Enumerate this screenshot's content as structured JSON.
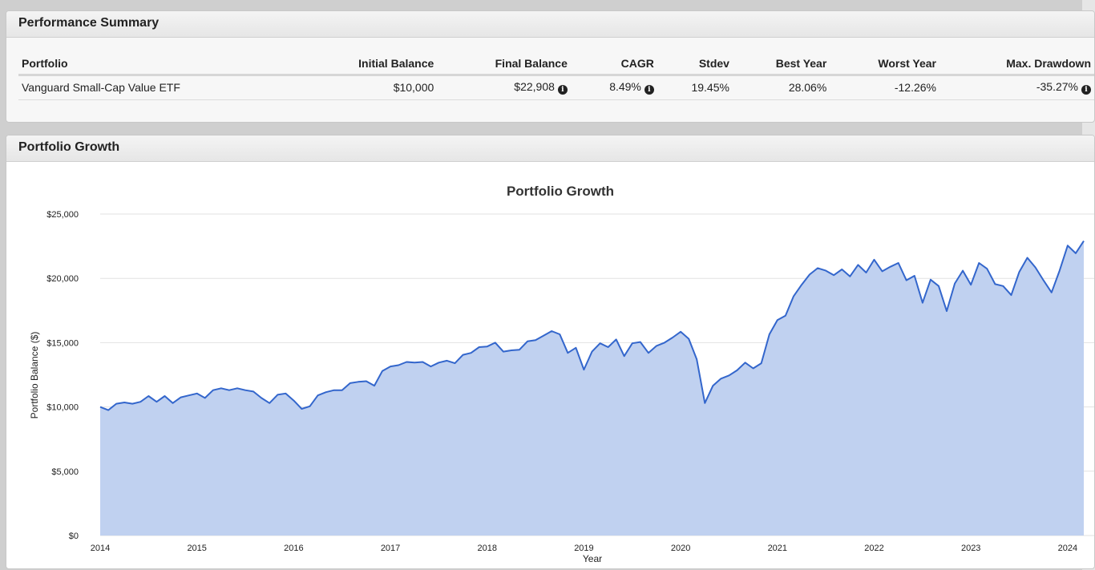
{
  "performance_summary": {
    "title": "Performance Summary",
    "columns": [
      "Portfolio",
      "Initial Balance",
      "Final Balance",
      "CAGR",
      "Stdev",
      "Best Year",
      "Worst Year",
      "Max. Drawdown"
    ],
    "row": {
      "portfolio": "Vanguard Small-Cap Value ETF",
      "initial_balance": "$10,000",
      "final_balance": "$22,908",
      "cagr": "8.49%",
      "stdev": "19.45%",
      "best_year": "28.06%",
      "worst_year": "-12.26%",
      "max_drawdown": "-35.27%"
    },
    "info_icon": "info-circle-icon"
  },
  "portfolio_growth": {
    "panel_title": "Portfolio Growth"
  },
  "chart_data": {
    "type": "area",
    "title": "Portfolio Growth",
    "xlabel": "Year",
    "ylabel": "Portfolio Balance ($)",
    "ylim": [
      0,
      25000
    ],
    "y_ticks": [
      "$0",
      "$5,000",
      "$10,000",
      "$15,000",
      "$20,000",
      "$25,000"
    ],
    "x_ticks": [
      "2014",
      "2015",
      "2016",
      "2017",
      "2018",
      "2019",
      "2020",
      "2021",
      "2022",
      "2023",
      "2024"
    ],
    "grid": true,
    "line_color": "#3366cc",
    "fill_color": "#c0d1f0",
    "series": [
      {
        "x_start": "2014-01",
        "frequency": "monthly",
        "values": [
          10000,
          9750,
          10250,
          10350,
          10250,
          10400,
          10850,
          10400,
          10850,
          10300,
          10750,
          10900,
          11050,
          10700,
          11300,
          11450,
          11300,
          11450,
          11300,
          11200,
          10700,
          10300,
          10950,
          11050,
          10500,
          9850,
          10050,
          10900,
          11150,
          11300,
          11300,
          11850,
          11950,
          12000,
          11650,
          12800,
          13150,
          13250,
          13500,
          13450,
          13500,
          13150,
          13450,
          13600,
          13400,
          14050,
          14200,
          14650,
          14700,
          15000,
          14300,
          14400,
          14450,
          15100,
          15200,
          15550,
          15900,
          15650,
          14200,
          14600,
          12900,
          14300,
          14950,
          14650,
          15250,
          13950,
          14950,
          15050,
          14200,
          14750,
          15000,
          15400,
          15850,
          15300,
          13700,
          10300,
          11650,
          12200,
          12450,
          12850,
          13450,
          13000,
          13400,
          15650,
          16750,
          17100,
          18600,
          19500,
          20300,
          20800,
          20600,
          20250,
          20700,
          20150,
          21050,
          20450,
          21450,
          20550,
          20900,
          21200,
          19850,
          20200,
          18100,
          19900,
          19400,
          17450,
          19600,
          20600,
          19500,
          21200,
          20750,
          19550,
          19400,
          18700,
          20500,
          21600,
          20850,
          19850,
          18900,
          20600,
          22550,
          21950,
          22908
        ]
      }
    ]
  }
}
